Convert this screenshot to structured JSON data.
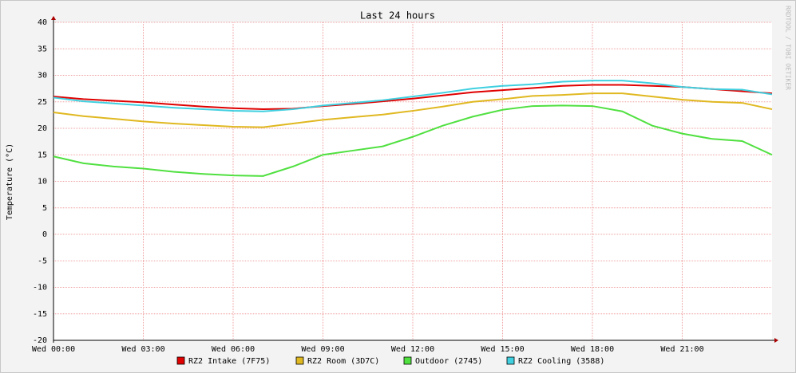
{
  "chart_data": {
    "type": "line",
    "title": "Last 24 hours",
    "y_label": "Temperature (°C)",
    "watermark": "RRDTOOL / TOBI OETIKER",
    "xlim": [
      0,
      24
    ],
    "xticks": [
      {
        "value": 0,
        "label": "Wed 00:00"
      },
      {
        "value": 3,
        "label": "Wed 03:00"
      },
      {
        "value": 6,
        "label": "Wed 06:00"
      },
      {
        "value": 9,
        "label": "Wed 09:00"
      },
      {
        "value": 12,
        "label": "Wed 12:00"
      },
      {
        "value": 15,
        "label": "Wed 15:00"
      },
      {
        "value": 18,
        "label": "Wed 18:00"
      },
      {
        "value": 21,
        "label": "Wed 21:00"
      }
    ],
    "ylim": [
      -20,
      40
    ],
    "yticks": [
      -20,
      -15,
      -10,
      -5,
      0,
      5,
      10,
      15,
      20,
      25,
      30,
      35,
      40
    ],
    "grid": true,
    "x": [
      0,
      1,
      2,
      3,
      4,
      5,
      6,
      7,
      8,
      9,
      10,
      11,
      12,
      13,
      14,
      15,
      16,
      17,
      18,
      19,
      20,
      21,
      22,
      23,
      24
    ],
    "series": [
      {
        "name": "RZ2 Intake (7F75)",
        "color": "#e00000",
        "values": [
          26,
          25.5,
          25.2,
          24.9,
          24.5,
          24.1,
          23.8,
          23.6,
          23.7,
          24.2,
          24.6,
          25.1,
          25.6,
          26.2,
          26.8,
          27.2,
          27.6,
          28,
          28.2,
          28.2,
          28,
          27.8,
          27.4,
          27,
          26.6
        ]
      },
      {
        "name": "RZ2 Room (3D7C)",
        "color": "#e0b820",
        "values": [
          23,
          22.3,
          21.8,
          21.3,
          20.9,
          20.6,
          20.3,
          20.2,
          20.9,
          21.6,
          22.1,
          22.6,
          23.3,
          24.1,
          25,
          25.5,
          26.1,
          26.3,
          26.6,
          26.6,
          26,
          25.4,
          25,
          24.8,
          23.6
        ]
      },
      {
        "name": "Outdoor (2745)",
        "color": "#50e040",
        "values": [
          14.7,
          13.4,
          12.8,
          12.4,
          11.8,
          11.4,
          11.1,
          11,
          12.8,
          15,
          15.8,
          16.6,
          18.4,
          20.5,
          22.2,
          23.5,
          24.2,
          24.3,
          24.2,
          23.2,
          20.5,
          19,
          18,
          17.6,
          15
        ]
      },
      {
        "name": "RZ2 Cooling (3588)",
        "color": "#40d0e0",
        "values": [
          25.8,
          25.1,
          24.7,
          24.3,
          23.9,
          23.6,
          23.3,
          23.2,
          23.6,
          24.3,
          24.8,
          25.3,
          26,
          26.7,
          27.5,
          28,
          28.3,
          28.8,
          29,
          29,
          28.5,
          27.8,
          27.4,
          27.3,
          26.4
        ]
      }
    ]
  }
}
